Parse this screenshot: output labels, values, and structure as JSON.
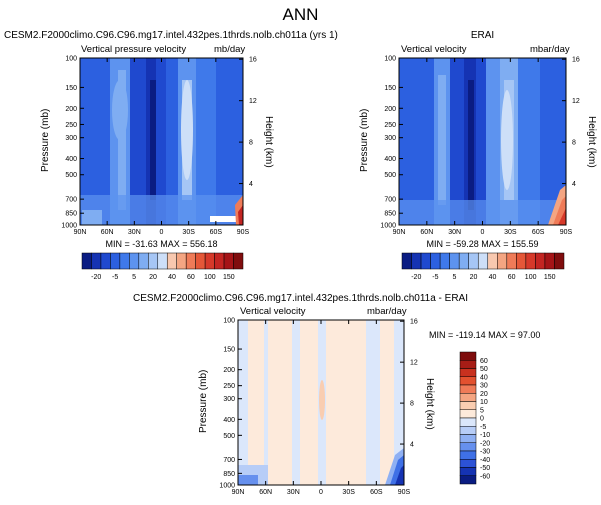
{
  "page": {
    "title": "ANN"
  },
  "colors": {
    "neg": [
      "#0a1c82",
      "#1533b3",
      "#1f49cf",
      "#2c60e0",
      "#3f79ea",
      "#5d93ef",
      "#7fadf2",
      "#a6c6f5",
      "#cddff8"
    ],
    "pos": [
      "#fbe3d6",
      "#f8c8af",
      "#f4a582",
      "#ef7b58",
      "#e55738",
      "#d6392a",
      "#c32522",
      "#a51417",
      "#800d0e"
    ],
    "diff_neg": [
      "#0a1c82",
      "#1533b3",
      "#2c52d6",
      "#3f70e6",
      "#6690ee",
      "#8fb0f3",
      "#b7cdf7",
      "#dbe7fb"
    ],
    "diff_pos": [
      "#fdeadb",
      "#f9cdb1",
      "#f4a582",
      "#ef7b58",
      "#e2512f",
      "#c8311f",
      "#a71d16",
      "#7e0c0c"
    ]
  },
  "chart_data": [
    {
      "type": "heatmap",
      "panel": "cesm",
      "title_left": "CESM2.F2000climo.C96.C96.mg17.intel.432pes.1thrds.nolb.ch011a (yrs 1)",
      "title_center": "",
      "plot_left_label": "Vertical pressure velocity",
      "plot_right_label": "mb/day",
      "xticks": [
        "90N",
        "60N",
        "30N",
        "0",
        "30S",
        "60S",
        "90S"
      ],
      "xlim": [
        90,
        -90
      ],
      "yticks": [
        "100",
        "150",
        "200",
        "250",
        "300",
        "400",
        "500",
        "700",
        "850",
        "1000"
      ],
      "ylim": [
        1000,
        100
      ],
      "ylabel": "Pressure (mb)",
      "y2ticks": [
        "16",
        "12",
        "8",
        "4"
      ],
      "y2label": "Height (km)",
      "stats": "MIN = -31.63  MAX = 556.18",
      "colorbar_ticks": [
        "-20",
        "-5",
        "5",
        "20",
        "40",
        "60",
        "100",
        "150"
      ],
      "ascent_bands_lat": [
        52,
        36,
        8,
        2,
        -6,
        -34,
        -52
      ],
      "descent_bands_lat": [
        26,
        -22,
        18,
        -18
      ],
      "min": -31.63,
      "max": 556.18
    },
    {
      "type": "heatmap",
      "panel": "erai",
      "title_left": "",
      "title_center": "ERAI",
      "plot_left_label": "Vertical velocity",
      "plot_right_label": "mbar/day",
      "xticks": [
        "90N",
        "60N",
        "30N",
        "0",
        "30S",
        "60S",
        "90S"
      ],
      "xlim": [
        90,
        -90
      ],
      "yticks": [
        "100",
        "150",
        "200",
        "250",
        "300",
        "400",
        "500",
        "700",
        "850",
        "1000"
      ],
      "ylim": [
        1000,
        100
      ],
      "ylabel": "Pressure (mb)",
      "y2ticks": [
        "16",
        "12",
        "8",
        "4"
      ],
      "y2label": "Height (km)",
      "stats": "MIN = -59.28  MAX = 155.59",
      "colorbar_ticks": [
        "-20",
        "-5",
        "5",
        "20",
        "40",
        "60",
        "100",
        "150"
      ],
      "ascent_bands_lat": [
        52,
        36,
        8,
        2,
        -6,
        -34,
        -52
      ],
      "descent_bands_lat": [
        26,
        -22,
        18,
        -18
      ],
      "min": -59.28,
      "max": 155.59
    },
    {
      "type": "heatmap",
      "panel": "diff",
      "title_left": "",
      "title_center": "CESM2.F2000climo.C96.C96.mg17.intel.432pes.1thrds.nolb.ch011a - ERAI",
      "plot_left_label": "Vertical velocity",
      "plot_right_label": "mbar/day",
      "xticks": [
        "90N",
        "60N",
        "30N",
        "0",
        "30S",
        "60S",
        "90S"
      ],
      "xlim": [
        90,
        -90
      ],
      "yticks": [
        "100",
        "150",
        "200",
        "250",
        "300",
        "400",
        "500",
        "700",
        "850",
        "1000"
      ],
      "ylim": [
        1000,
        100
      ],
      "ylabel": "Pressure (mb)",
      "y2ticks": [
        "16",
        "12",
        "8",
        "4"
      ],
      "y2label": "Height (km)",
      "stats": "MIN = -119.14  MAX =  97.00",
      "colorbar_ticks": [
        "60",
        "50",
        "40",
        "30",
        "20",
        "10",
        "5",
        "0",
        "-5",
        "-10",
        "-20",
        "-30",
        "-40",
        "-50",
        "-60"
      ],
      "min": -119.14,
      "max": 97.0
    }
  ]
}
